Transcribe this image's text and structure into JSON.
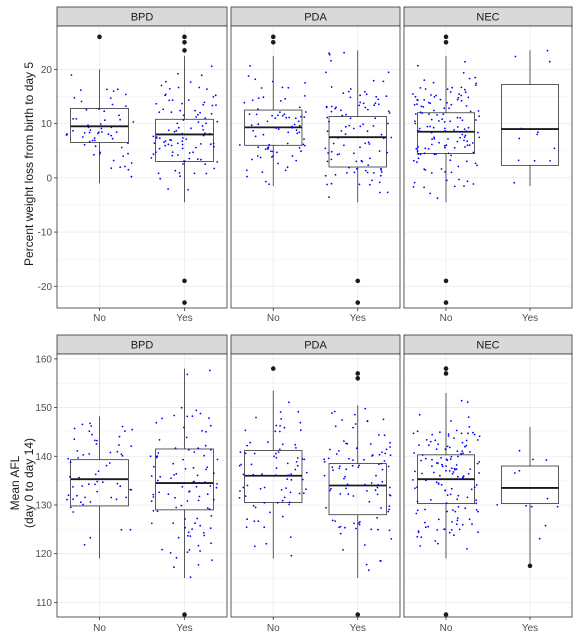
{
  "chart_data": [
    {
      "type": "boxplot",
      "ylabel": "Percent weight loss from birth to day 5",
      "ylim": [
        -24,
        28
      ],
      "yticks": [
        "-20",
        "-10",
        "0",
        "10",
        "20"
      ],
      "ytick_values": [
        -20,
        -10,
        0,
        10,
        20
      ],
      "categories": [
        "No",
        "Yes"
      ],
      "grid": true,
      "point_color": "#0000ff",
      "facets": [
        {
          "name": "BPD",
          "boxes": [
            {
              "category": "No",
              "q1": 6.5,
              "median": 9.5,
              "q3": 12.8,
              "whisker_low": -1,
              "whisker_high": 20,
              "outliers": [
                26
              ],
              "jitter_n": 60
            },
            {
              "category": "Yes",
              "q1": 3,
              "median": 8,
              "q3": 10.8,
              "whisker_low": -4.5,
              "whisker_high": 22.5,
              "outliers": [
                -19,
                -23,
                23.5,
                25,
                26
              ],
              "jitter_n": 100
            }
          ]
        },
        {
          "name": "PDA",
          "boxes": [
            {
              "category": "No",
              "q1": 6,
              "median": 9.3,
              "q3": 12.5,
              "whisker_low": -1.5,
              "whisker_high": 22.5,
              "outliers": [
                25,
                26
              ],
              "jitter_n": 80
            },
            {
              "category": "Yes",
              "q1": 2,
              "median": 7.5,
              "q3": 11.3,
              "whisker_low": -4.5,
              "whisker_high": 23.5,
              "outliers": [
                -19,
                -23
              ],
              "jitter_n": 100
            }
          ]
        },
        {
          "name": "NEC",
          "boxes": [
            {
              "category": "No",
              "q1": 4.5,
              "median": 8.5,
              "q3": 12,
              "whisker_low": -4.5,
              "whisker_high": 22.5,
              "outliers": [
                -19,
                -23,
                25,
                26
              ],
              "jitter_n": 140
            },
            {
              "category": "Yes",
              "q1": 2.3,
              "median": 9,
              "q3": 17.2,
              "whisker_low": -1.5,
              "whisker_high": 23.5,
              "outliers": [],
              "jitter_n": 12
            }
          ]
        }
      ]
    },
    {
      "type": "boxplot",
      "ylabel_lines": [
        "Mean AFL",
        "(day 0 to day 14)"
      ],
      "ylim": [
        107,
        161
      ],
      "yticks": [
        "110",
        "120",
        "130",
        "140",
        "150",
        "160"
      ],
      "ytick_values": [
        110,
        120,
        130,
        140,
        150,
        160
      ],
      "categories": [
        "No",
        "Yes"
      ],
      "grid": true,
      "point_color": "#0000ff",
      "facets": [
        {
          "name": "BPD",
          "boxes": [
            {
              "category": "No",
              "q1": 129.8,
              "median": 135.3,
              "q3": 139.3,
              "whisker_low": 119,
              "whisker_high": 148.2,
              "outliers": [],
              "jitter_n": 60
            },
            {
              "category": "Yes",
              "q1": 129,
              "median": 134.5,
              "q3": 141.5,
              "whisker_low": 115,
              "whisker_high": 158,
              "outliers": [
                107.5
              ],
              "jitter_n": 100
            }
          ]
        },
        {
          "name": "PDA",
          "boxes": [
            {
              "category": "No",
              "q1": 130.5,
              "median": 136,
              "q3": 141.2,
              "whisker_low": 119,
              "whisker_high": 153.5,
              "outliers": [
                158
              ],
              "jitter_n": 80
            },
            {
              "category": "Yes",
              "q1": 128,
              "median": 134,
              "q3": 138.5,
              "whisker_low": 115,
              "whisker_high": 150.5,
              "outliers": [
                107.5,
                156,
                157
              ],
              "jitter_n": 100
            }
          ]
        },
        {
          "name": "NEC",
          "boxes": [
            {
              "category": "No",
              "q1": 130.3,
              "median": 135.3,
              "q3": 140.3,
              "whisker_low": 119,
              "whisker_high": 153,
              "outliers": [
                107.5,
                157,
                158
              ],
              "jitter_n": 140
            },
            {
              "category": "Yes",
              "q1": 130.3,
              "median": 133.5,
              "q3": 138,
              "whisker_low": 118,
              "whisker_high": 146,
              "outliers": [
                117.5
              ],
              "jitter_n": 12
            }
          ]
        }
      ]
    }
  ]
}
